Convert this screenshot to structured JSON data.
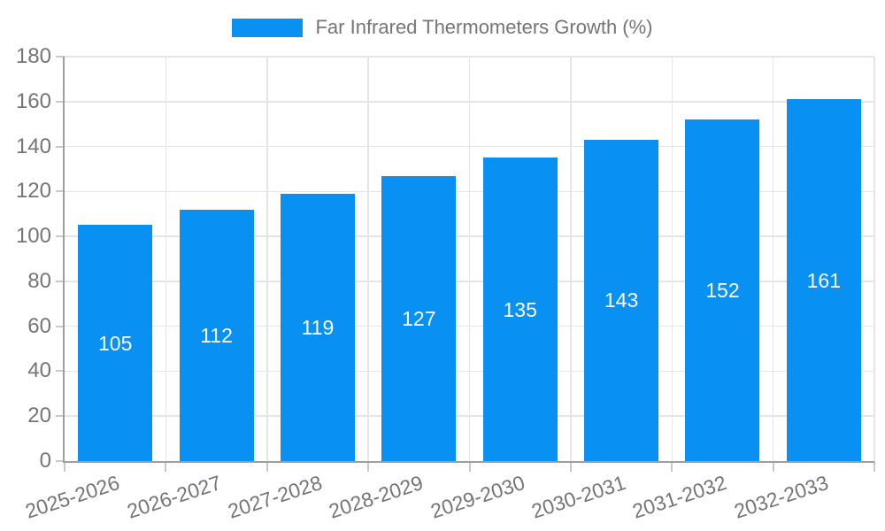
{
  "legend": {
    "label": "Far Infrared Thermometers Growth (%)"
  },
  "colors": {
    "bar": "#0890f2",
    "bar_value_label": "#ffffff",
    "axis_line": "#9e9e9e",
    "grid_line": "#e5e5e5",
    "tick_mark": "#c9c9c9",
    "tick_label": "#757575",
    "background": "#ffffff"
  },
  "chart_data": {
    "type": "bar",
    "title": "Far Infrared Thermometers Growth (%)",
    "categories": [
      "2025-2026",
      "2026-2027",
      "2027-2028",
      "2028-2029",
      "2029-2030",
      "2030-2031",
      "2031-2032",
      "2032-2033"
    ],
    "values": [
      105,
      112,
      119,
      127,
      135,
      143,
      152,
      161
    ],
    "xlabel": "",
    "ylabel": "",
    "ylim": [
      0,
      180
    ],
    "yticks": [
      0,
      20,
      40,
      60,
      80,
      100,
      120,
      140,
      160,
      180
    ],
    "grid": true,
    "legend_position": "top-center",
    "value_label_position": "inside-center",
    "x_tick_label_rotation_deg": -18
  }
}
